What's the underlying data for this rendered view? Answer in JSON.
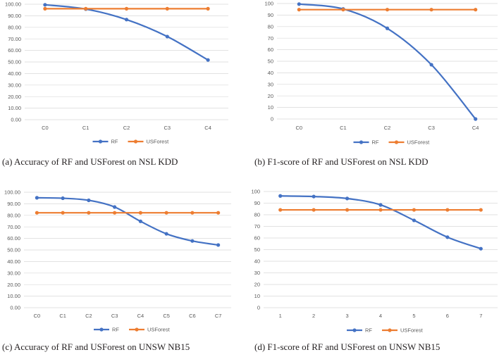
{
  "chart_data": [
    {
      "type": "line",
      "caption": "(a) Accuracy of RF and USForest on NSL KDD",
      "categories": [
        "C0",
        "C1",
        "C2",
        "C3",
        "C4"
      ],
      "ylim": [
        0,
        100
      ],
      "yticks": [
        "0.00",
        "10.00",
        "20.00",
        "30.00",
        "40.00",
        "50.00",
        "60.00",
        "70.00",
        "80.00",
        "90.00",
        "100.00"
      ],
      "legend": [
        "RF",
        "USForest"
      ],
      "series": [
        {
          "name": "RF",
          "color": "#4472c4",
          "values": [
            99.5,
            95.8,
            86.7,
            72.0,
            51.7
          ]
        },
        {
          "name": "USForest",
          "color": "#ed7d31",
          "values": [
            96.1,
            96.1,
            96.1,
            96.1,
            96.1
          ]
        }
      ]
    },
    {
      "type": "line",
      "caption": "(b) F1-score of RF and USForest on NSL KDD",
      "categories": [
        "C0",
        "C1",
        "C2",
        "C3",
        "C4"
      ],
      "ylim": [
        0,
        100
      ],
      "yticks": [
        "0",
        "10",
        "20",
        "30",
        "40",
        "50",
        "60",
        "70",
        "80",
        "90",
        "100"
      ],
      "legend": [
        "RF",
        "USForest"
      ],
      "series": [
        {
          "name": "RF",
          "color": "#4472c4",
          "values": [
            99.5,
            95.3,
            78.5,
            47.0,
            0.0
          ]
        },
        {
          "name": "USForest",
          "color": "#ed7d31",
          "values": [
            94.7,
            94.7,
            94.7,
            94.7,
            94.7
          ]
        }
      ]
    },
    {
      "type": "line",
      "caption": "(c) Accuracy of RF and USForest on UNSW NB15",
      "categories": [
        "C0",
        "C1",
        "C2",
        "C3",
        "C4",
        "C5",
        "C6",
        "C7"
      ],
      "ylim": [
        0,
        100
      ],
      "yticks": [
        "0.00",
        "10.00",
        "20.00",
        "30.00",
        "40.00",
        "50.00",
        "60.00",
        "70.00",
        "80.00",
        "90.00",
        "100.00"
      ],
      "legend": [
        "RF",
        "USForest"
      ],
      "series": [
        {
          "name": "RF",
          "color": "#4472c4",
          "values": [
            95.2,
            94.8,
            93.0,
            87.2,
            74.8,
            64.0,
            57.8,
            54.3
          ]
        },
        {
          "name": "USForest",
          "color": "#ed7d31",
          "values": [
            82.2,
            82.2,
            82.2,
            82.2,
            82.2,
            82.2,
            82.2,
            82.2
          ]
        }
      ]
    },
    {
      "type": "line",
      "caption": "(d) F1-score of RF and USForest on UNSW NB15",
      "categories": [
        "1",
        "2",
        "3",
        "4",
        "5",
        "6",
        "7"
      ],
      "ylim": [
        0,
        100
      ],
      "yticks": [
        "0",
        "10",
        "20",
        "30",
        "40",
        "50",
        "60",
        "70",
        "80",
        "90",
        "100"
      ],
      "legend": [
        "RF",
        "USForest"
      ],
      "series": [
        {
          "name": "RF",
          "color": "#4472c4",
          "values": [
            96.2,
            95.7,
            94.0,
            88.5,
            75.2,
            60.7,
            50.8
          ]
        },
        {
          "name": "USForest",
          "color": "#ed7d31",
          "values": [
            84.2,
            84.2,
            84.2,
            84.2,
            84.2,
            84.2,
            84.2
          ]
        }
      ]
    }
  ]
}
